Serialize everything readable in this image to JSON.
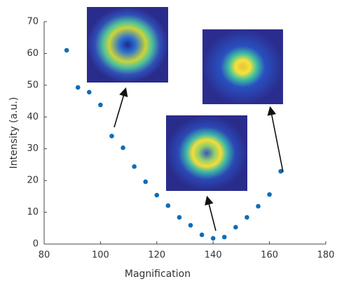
{
  "chart_data": {
    "type": "scatter",
    "x_label": "Magnification",
    "y_label": "Intensity (a.u.)",
    "color": "#0a6db8",
    "x": [
      88,
      92,
      96,
      100,
      104,
      108,
      112,
      116,
      120,
      124,
      128,
      132,
      136,
      140,
      144,
      148,
      152,
      156,
      160,
      164
    ],
    "y": [
      61,
      49.3,
      47.8,
      43.8,
      34,
      30.3,
      24.4,
      19.6,
      15.4,
      12.1,
      8.4,
      5.9,
      2.9,
      1.8,
      2.2,
      5.3,
      8.4,
      11.9,
      15.6,
      22.9
    ],
    "xlim": [
      80,
      180
    ],
    "xticks": [
      80,
      100,
      120,
      140,
      160,
      180
    ],
    "ylim": [
      0,
      70
    ],
    "yticks": [
      0,
      10,
      20,
      30,
      40,
      50,
      60,
      70
    ]
  }
}
